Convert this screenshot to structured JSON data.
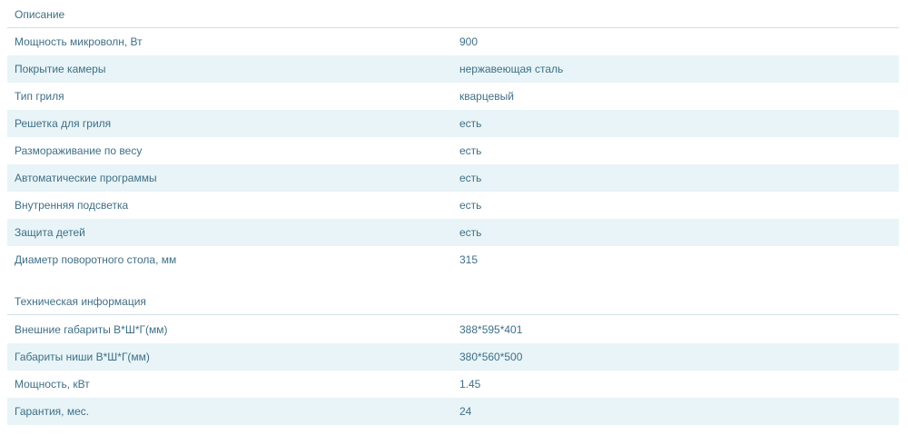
{
  "sections": [
    {
      "title": "Описание",
      "rows": [
        {
          "key": "Мощность микроволн, Вт",
          "value": "900"
        },
        {
          "key": "Покрытие камеры",
          "value": "нержавеющая сталь"
        },
        {
          "key": "Тип гриля",
          "value": "кварцевый"
        },
        {
          "key": "Решетка для гриля",
          "value": "есть"
        },
        {
          "key": "Размораживание по весу",
          "value": "есть"
        },
        {
          "key": "Автоматические программы",
          "value": "есть"
        },
        {
          "key": "Внутренняя подсветка",
          "value": "есть"
        },
        {
          "key": "Защита детей",
          "value": "есть"
        },
        {
          "key": "Диаметр поворотного стола, мм",
          "value": "315"
        }
      ]
    },
    {
      "title": "Техническая информация",
      "rows": [
        {
          "key": "Внешние габариты В*Ш*Г(мм)",
          "value": "388*595*401"
        },
        {
          "key": "Габариты ниши В*Ш*Г(мм)",
          "value": "380*560*500"
        },
        {
          "key": "Мощность, кВт",
          "value": "1.45"
        },
        {
          "key": "Гарантия, мес.",
          "value": "24"
        }
      ]
    }
  ],
  "colors": {
    "text": "#3f6f87",
    "stripe": "#e8f4f7",
    "divider": "#cfe0e6"
  }
}
